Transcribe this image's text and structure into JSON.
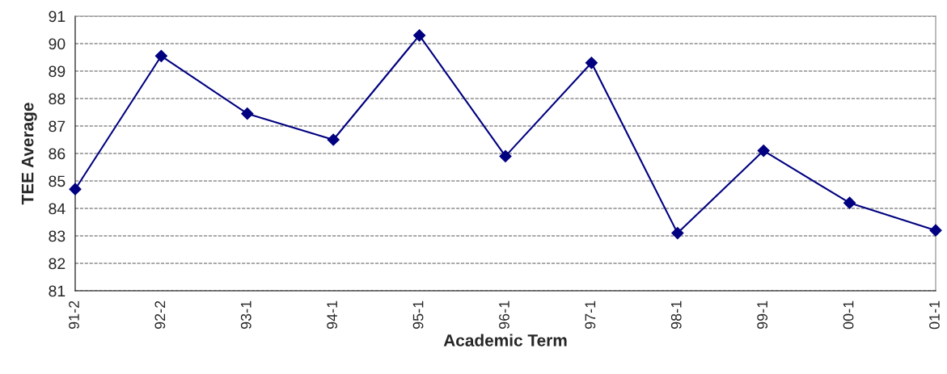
{
  "chart_data": {
    "type": "line",
    "xlabel": "Academic Term",
    "ylabel": "TEE Average",
    "categories": [
      "91-2",
      "92-2",
      "93-1",
      "94-1",
      "95-1",
      "96-1",
      "97-1",
      "98-1",
      "99-1",
      "00-1",
      "01-1"
    ],
    "series": [
      {
        "color": "#000080",
        "values": [
          84.7,
          89.55,
          87.45,
          86.5,
          90.3,
          85.9,
          89.3,
          83.1,
          86.1,
          84.2,
          83.2
        ]
      }
    ],
    "ylim": [
      81,
      91
    ],
    "yticks": [
      81,
      82,
      83,
      84,
      85,
      86,
      87,
      88,
      89,
      90,
      91
    ],
    "grid": "y",
    "marker": "diamond",
    "line_style": "solid",
    "legend": false
  }
}
